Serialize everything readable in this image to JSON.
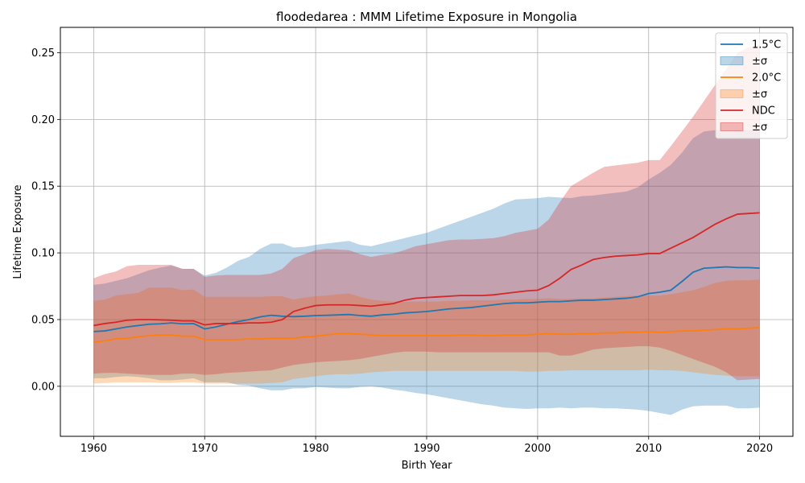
{
  "chart_data": {
    "type": "line",
    "title": "floodedarea : MMM Lifetime Exposure in Mongolia",
    "xlabel": "Birth Year",
    "ylabel": "Lifetime Exposure",
    "xlim": [
      1957,
      2023
    ],
    "ylim": [
      -0.0375,
      0.269
    ],
    "xticks": [
      "1960",
      "1970",
      "1980",
      "1990",
      "2000",
      "2010",
      "2020"
    ],
    "yticks": [
      "0.00",
      "0.05",
      "0.10",
      "0.15",
      "0.20",
      "0.25"
    ],
    "grid": true,
    "legend_position": "top-right",
    "x": [
      1960,
      1961,
      1962,
      1963,
      1964,
      1965,
      1966,
      1967,
      1968,
      1969,
      1970,
      1971,
      1972,
      1973,
      1974,
      1975,
      1976,
      1977,
      1978,
      1979,
      1980,
      1981,
      1982,
      1983,
      1984,
      1985,
      1986,
      1987,
      1988,
      1989,
      1990,
      1991,
      1992,
      1993,
      1994,
      1995,
      1996,
      1997,
      1998,
      1999,
      2000,
      2001,
      2002,
      2003,
      2004,
      2005,
      2006,
      2007,
      2008,
      2009,
      2010,
      2011,
      2012,
      2013,
      2014,
      2015,
      2016,
      2017,
      2018,
      2019,
      2020
    ],
    "series": [
      {
        "name": "1.5°C",
        "band_label": "±σ",
        "color": "#1f77b4",
        "values": [
          0.041,
          0.0415,
          0.043,
          0.0445,
          0.0455,
          0.0465,
          0.0468,
          0.0475,
          0.0468,
          0.047,
          0.043,
          0.0445,
          0.0465,
          0.0485,
          0.05,
          0.052,
          0.0532,
          0.0525,
          0.0522,
          0.0525,
          0.053,
          0.0532,
          0.0535,
          0.0538,
          0.053,
          0.0525,
          0.0535,
          0.054,
          0.055,
          0.0555,
          0.056,
          0.057,
          0.058,
          0.0585,
          0.059,
          0.06,
          0.061,
          0.062,
          0.0625,
          0.0625,
          0.063,
          0.0635,
          0.0635,
          0.064,
          0.0645,
          0.0645,
          0.065,
          0.0655,
          0.066,
          0.067,
          0.0695,
          0.0705,
          0.072,
          0.0785,
          0.0855,
          0.0885,
          0.089,
          0.0895,
          0.089,
          0.089,
          0.0885
        ],
        "upper": [
          0.076,
          0.077,
          0.079,
          0.081,
          0.084,
          0.087,
          0.089,
          0.0905,
          0.088,
          0.088,
          0.083,
          0.085,
          0.089,
          0.094,
          0.097,
          0.103,
          0.107,
          0.107,
          0.104,
          0.1045,
          0.106,
          0.107,
          0.108,
          0.109,
          0.106,
          0.105,
          0.107,
          0.109,
          0.111,
          0.113,
          0.115,
          0.118,
          0.121,
          0.124,
          0.127,
          0.13,
          0.133,
          0.137,
          0.14,
          0.1405,
          0.141,
          0.142,
          0.1415,
          0.141,
          0.1425,
          0.143,
          0.144,
          0.145,
          0.146,
          0.149,
          0.155,
          0.16,
          0.166,
          0.175,
          0.186,
          0.191,
          0.192,
          0.192,
          0.192,
          0.192,
          0.192
        ],
        "lower": [
          0.006,
          0.006,
          0.007,
          0.0075,
          0.007,
          0.006,
          0.0045,
          0.0045,
          0.005,
          0.006,
          0.003,
          0.003,
          0.003,
          0.001,
          0.0005,
          -0.0015,
          -0.003,
          -0.003,
          -0.0015,
          -0.0015,
          -0.0005,
          -0.001,
          -0.0015,
          -0.0015,
          -0.0005,
          0,
          -0.001,
          -0.0025,
          -0.0035,
          -0.005,
          -0.006,
          -0.0075,
          -0.009,
          -0.0105,
          -0.012,
          -0.0135,
          -0.0145,
          -0.016,
          -0.0165,
          -0.017,
          -0.0165,
          -0.0165,
          -0.016,
          -0.0165,
          -0.016,
          -0.016,
          -0.0165,
          -0.0165,
          -0.017,
          -0.0175,
          -0.0185,
          -0.02,
          -0.0215,
          -0.0175,
          -0.015,
          -0.0145,
          -0.0145,
          -0.0145,
          -0.0165,
          -0.0165,
          -0.016
        ]
      },
      {
        "name": "2.0°C",
        "band_label": "±σ",
        "color": "#ff7f0e",
        "values": [
          0.033,
          0.034,
          0.0355,
          0.036,
          0.037,
          0.038,
          0.0385,
          0.0385,
          0.0375,
          0.0375,
          0.035,
          0.035,
          0.035,
          0.035,
          0.0355,
          0.0355,
          0.036,
          0.036,
          0.036,
          0.037,
          0.0375,
          0.0385,
          0.0395,
          0.0395,
          0.039,
          0.0385,
          0.038,
          0.038,
          0.038,
          0.038,
          0.038,
          0.038,
          0.038,
          0.0385,
          0.0385,
          0.038,
          0.038,
          0.0385,
          0.0385,
          0.0385,
          0.039,
          0.0395,
          0.039,
          0.039,
          0.0395,
          0.0395,
          0.04,
          0.04,
          0.0405,
          0.0405,
          0.041,
          0.0405,
          0.041,
          0.0415,
          0.0415,
          0.042,
          0.0425,
          0.043,
          0.043,
          0.0435,
          0.044
        ],
        "upper": [
          0.064,
          0.065,
          0.068,
          0.069,
          0.07,
          0.074,
          0.074,
          0.074,
          0.072,
          0.0725,
          0.067,
          0.067,
          0.067,
          0.067,
          0.067,
          0.067,
          0.0675,
          0.0675,
          0.065,
          0.0665,
          0.0675,
          0.068,
          0.069,
          0.0695,
          0.067,
          0.065,
          0.064,
          0.0635,
          0.0635,
          0.0635,
          0.0635,
          0.0635,
          0.064,
          0.064,
          0.0645,
          0.0645,
          0.0645,
          0.065,
          0.065,
          0.0655,
          0.0655,
          0.066,
          0.0655,
          0.0655,
          0.066,
          0.066,
          0.0665,
          0.067,
          0.0675,
          0.068,
          0.068,
          0.068,
          0.069,
          0.0705,
          0.072,
          0.0745,
          0.0775,
          0.079,
          0.0795,
          0.0795,
          0.08
        ],
        "lower": [
          0.002,
          0.0025,
          0.003,
          0.003,
          0.003,
          0.003,
          0.0025,
          0.0025,
          0.003,
          0.003,
          0.002,
          0.002,
          0.002,
          0.002,
          0.002,
          0.002,
          0.0025,
          0.003,
          0.0055,
          0.0065,
          0.0075,
          0.0085,
          0.009,
          0.009,
          0.0095,
          0.0105,
          0.011,
          0.0115,
          0.0115,
          0.0115,
          0.0115,
          0.0115,
          0.0115,
          0.0115,
          0.0115,
          0.0115,
          0.0115,
          0.0115,
          0.0115,
          0.011,
          0.011,
          0.0115,
          0.0115,
          0.012,
          0.012,
          0.012,
          0.012,
          0.012,
          0.012,
          0.012,
          0.0125,
          0.012,
          0.012,
          0.0115,
          0.0105,
          0.0095,
          0.0085,
          0.008,
          0.0075,
          0.0075,
          0.0075
        ]
      },
      {
        "name": "NDC",
        "band_label": "±σ",
        "color": "#d62728",
        "values": [
          0.0455,
          0.047,
          0.048,
          0.0495,
          0.05,
          0.05,
          0.0498,
          0.0495,
          0.049,
          0.049,
          0.046,
          0.047,
          0.047,
          0.047,
          0.0475,
          0.0475,
          0.048,
          0.05,
          0.056,
          0.0585,
          0.0605,
          0.061,
          0.061,
          0.061,
          0.0605,
          0.06,
          0.061,
          0.062,
          0.0645,
          0.066,
          0.0665,
          0.067,
          0.0675,
          0.068,
          0.068,
          0.068,
          0.0685,
          0.0695,
          0.0705,
          0.0715,
          0.072,
          0.0755,
          0.081,
          0.0875,
          0.091,
          0.095,
          0.0965,
          0.0975,
          0.098,
          0.0985,
          0.0995,
          0.0995,
          0.1035,
          0.1075,
          0.1115,
          0.1165,
          0.1215,
          0.1255,
          0.129,
          0.1295,
          0.13
        ],
        "upper": [
          0.081,
          0.084,
          0.086,
          0.09,
          0.091,
          0.091,
          0.091,
          0.091,
          0.088,
          0.088,
          0.082,
          0.083,
          0.0835,
          0.0835,
          0.0835,
          0.0835,
          0.0845,
          0.088,
          0.096,
          0.099,
          0.102,
          0.103,
          0.1025,
          0.102,
          0.099,
          0.097,
          0.0985,
          0.0995,
          0.102,
          0.105,
          0.1065,
          0.108,
          0.1095,
          0.11,
          0.11,
          0.1105,
          0.111,
          0.1125,
          0.115,
          0.1165,
          0.118,
          0.125,
          0.138,
          0.15,
          0.155,
          0.16,
          0.1645,
          0.1655,
          0.1665,
          0.1675,
          0.1695,
          0.1695,
          0.18,
          0.191,
          0.202,
          0.214,
          0.226,
          0.238,
          0.25,
          0.254,
          0.256
        ],
        "lower": [
          0.0095,
          0.01,
          0.01,
          0.0095,
          0.009,
          0.0085,
          0.0085,
          0.0085,
          0.0095,
          0.0095,
          0.0085,
          0.009,
          0.01,
          0.0105,
          0.011,
          0.0115,
          0.012,
          0.014,
          0.016,
          0.017,
          0.018,
          0.0185,
          0.019,
          0.0195,
          0.0205,
          0.022,
          0.0235,
          0.025,
          0.026,
          0.026,
          0.026,
          0.0255,
          0.0255,
          0.0255,
          0.0255,
          0.0255,
          0.0255,
          0.0255,
          0.0255,
          0.0255,
          0.0255,
          0.0255,
          0.023,
          0.023,
          0.025,
          0.0275,
          0.0285,
          0.029,
          0.0295,
          0.03,
          0.03,
          0.029,
          0.0265,
          0.0235,
          0.0205,
          0.0175,
          0.0145,
          0.0105,
          0.0045,
          0.005,
          0.0055
        ]
      }
    ]
  }
}
